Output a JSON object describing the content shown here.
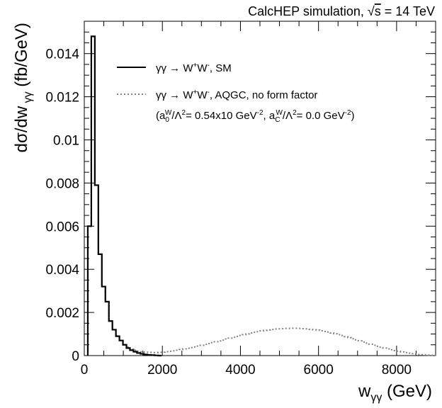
{
  "title": {
    "prefix": "CalcHEP simulation, ",
    "sqrt": "√",
    "s_var": "s",
    "suffix": " = 14 TeV"
  },
  "axes": {
    "xlabel_main": "w",
    "xlabel_sub": "γγ",
    "xlabel_unit": " (GeV)",
    "ylabel_main": "dσ/dw",
    "ylabel_sub": " γγ",
    "ylabel_unit": " (fb/GeV)"
  },
  "legend": {
    "sm": {
      "process": "γγ → W",
      "sup1": "+",
      "w2": "W",
      "sup2": "-",
      "rest": ", SM"
    },
    "aqgc": {
      "process": "γγ → W",
      "sup1": "+",
      "w2": "W",
      "sup2": "-",
      "rest": ", AQGC, no form factor"
    },
    "params": {
      "open": "(a",
      "sub0": "0",
      "supW1": "W",
      "lam1": "/Λ",
      "sq1": "2",
      "val0": "= 0.54x10 GeV",
      "exp0": "-2",
      "sep": ", a",
      "subC": "C",
      "supW2": "W",
      "lam2": "/Λ",
      "sq2": "2",
      "valC": "= 0.0 GeV",
      "expC": "-2",
      "close": ")"
    }
  },
  "chart_data": {
    "type": "histogram",
    "title": "CalcHEP simulation, √s = 14 TeV",
    "xlabel": "w_γγ (GeV)",
    "ylabel": "dσ/dw_γγ (fb/GeV)",
    "xlim": [
      0,
      9000
    ],
    "ylim": [
      0,
      0.0155
    ],
    "x_ticks": [
      0,
      2000,
      4000,
      6000,
      8000
    ],
    "y_ticks": [
      0,
      0.002,
      0.004,
      0.006,
      0.008,
      0.01,
      0.012,
      0.014
    ],
    "x_tick_labels": [
      "0",
      "2000",
      "4000",
      "6000",
      "8000"
    ],
    "y_tick_labels": [
      "0",
      "0.002",
      "0.004",
      "0.006",
      "0.008",
      "0.01",
      "0.012",
      "0.014"
    ],
    "bin_width": 90,
    "grid": false,
    "legend_position": "top-right",
    "series": [
      {
        "name": "γγ → W+W-, SM",
        "style": "solid",
        "color": "#000000",
        "bin_start": 90,
        "values": [
          0.006,
          0.0148,
          0.0079,
          0.0047,
          0.0032,
          0.0025,
          0.0016,
          0.0012,
          0.0009,
          0.0007,
          0.0005,
          0.00035,
          0.00025,
          0.00018,
          0.00012,
          8e-05,
          5e-05,
          3e-05,
          2e-05,
          1e-05,
          0.0
        ]
      },
      {
        "name": "γγ → W+W-, AQGC, no form factor",
        "style": "dotted",
        "color": "#808080",
        "bin_start": 90,
        "values": [
          0.006,
          0.0148,
          0.0079,
          0.0047,
          0.0032,
          0.0025,
          0.0016,
          0.0012,
          0.0009,
          0.0007,
          0.0005,
          0.0004,
          0.0003,
          0.00025,
          0.0002,
          0.00018,
          0.00016,
          0.00015,
          0.00014,
          0.00014,
          0.00015,
          0.00016,
          0.00018,
          0.0002,
          0.00022,
          0.00025,
          0.00028,
          0.00031,
          0.00034,
          0.00037,
          0.0004,
          0.00044,
          0.00048,
          0.00052,
          0.00056,
          0.0006,
          0.00064,
          0.00068,
          0.00072,
          0.00077,
          0.00081,
          0.00085,
          0.00089,
          0.00093,
          0.00097,
          0.00101,
          0.00105,
          0.00108,
          0.00111,
          0.00114,
          0.00117,
          0.00119,
          0.00121,
          0.00123,
          0.00124,
          0.00125,
          0.00126,
          0.00126,
          0.00127,
          0.00127,
          0.00126,
          0.00125,
          0.00124,
          0.00122,
          0.0012,
          0.00118,
          0.00115,
          0.00112,
          0.00109,
          0.00105,
          0.00101,
          0.00097,
          0.00093,
          0.00088,
          0.00083,
          0.00078,
          0.00073,
          0.00068,
          0.00063,
          0.00058,
          0.00053,
          0.00048,
          0.00043,
          0.00039,
          0.00035,
          0.00031,
          0.00027,
          0.00023,
          0.0002,
          0.00017,
          0.00014,
          0.00011,
          9e-05,
          7e-05,
          5e-05,
          4e-05,
          3e-05,
          2e-05,
          1e-05
        ]
      }
    ]
  }
}
